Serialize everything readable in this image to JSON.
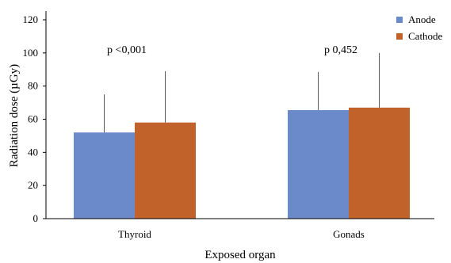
{
  "chart_data": {
    "type": "bar",
    "categories": [
      "Thyroid",
      "Gonads"
    ],
    "series": [
      {
        "name": "Anode",
        "values": [
          52,
          65.5
        ],
        "errors": [
          23,
          23
        ],
        "color": "#6b8ac9"
      },
      {
        "name": "Cathode",
        "values": [
          58,
          67
        ],
        "errors": [
          31,
          33
        ],
        "color": "#c0622a"
      }
    ],
    "annotations": [
      "p <0,001",
      "p 0,452"
    ],
    "xlabel": "Exposed organ",
    "ylabel": "Radiation dose (µGy)",
    "ylim": [
      0,
      120
    ],
    "yticks": [
      0,
      20,
      40,
      60,
      80,
      100,
      120
    ],
    "grid": false,
    "legend_position": "top-right",
    "error_bar_color": "#595959"
  }
}
